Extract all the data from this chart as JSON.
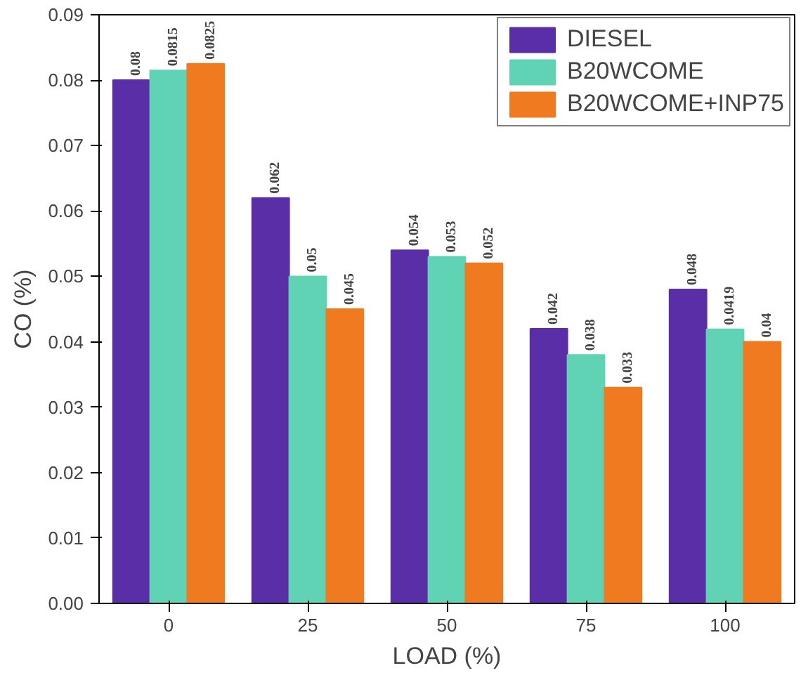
{
  "chart_data": {
    "type": "bar",
    "xlabel": "LOAD (%)",
    "ylabel": "CO (%)",
    "categories": [
      "0",
      "25",
      "50",
      "75",
      "100"
    ],
    "series": [
      {
        "name": "DIESEL",
        "color": "#5a2ea6",
        "values": [
          0.08,
          0.062,
          0.054,
          0.042,
          0.048
        ]
      },
      {
        "name": "B20WCOME",
        "color": "#5fd3b3",
        "values": [
          0.0815,
          0.05,
          0.053,
          0.038,
          0.0419
        ]
      },
      {
        "name": "B20WCOME+INP75",
        "color": "#f07a20",
        "values": [
          0.0825,
          0.045,
          0.052,
          0.033,
          0.04
        ]
      }
    ],
    "ylim": [
      0,
      0.09
    ],
    "yticks": [
      {
        "value": 0,
        "label": "0.00"
      },
      {
        "value": 0.01,
        "label": "0.01"
      },
      {
        "value": 0.02,
        "label": "0.02"
      },
      {
        "value": 0.03,
        "label": "0.03"
      },
      {
        "value": 0.04,
        "label": "0.04"
      },
      {
        "value": 0.05,
        "label": "0.05"
      },
      {
        "value": 0.06,
        "label": "0.06"
      },
      {
        "value": 0.07,
        "label": "0.07"
      },
      {
        "value": 0.08,
        "label": "0.08"
      },
      {
        "value": 0.09,
        "label": "0.09"
      }
    ],
    "data_labels": true,
    "legend": "top right",
    "grid": false
  }
}
